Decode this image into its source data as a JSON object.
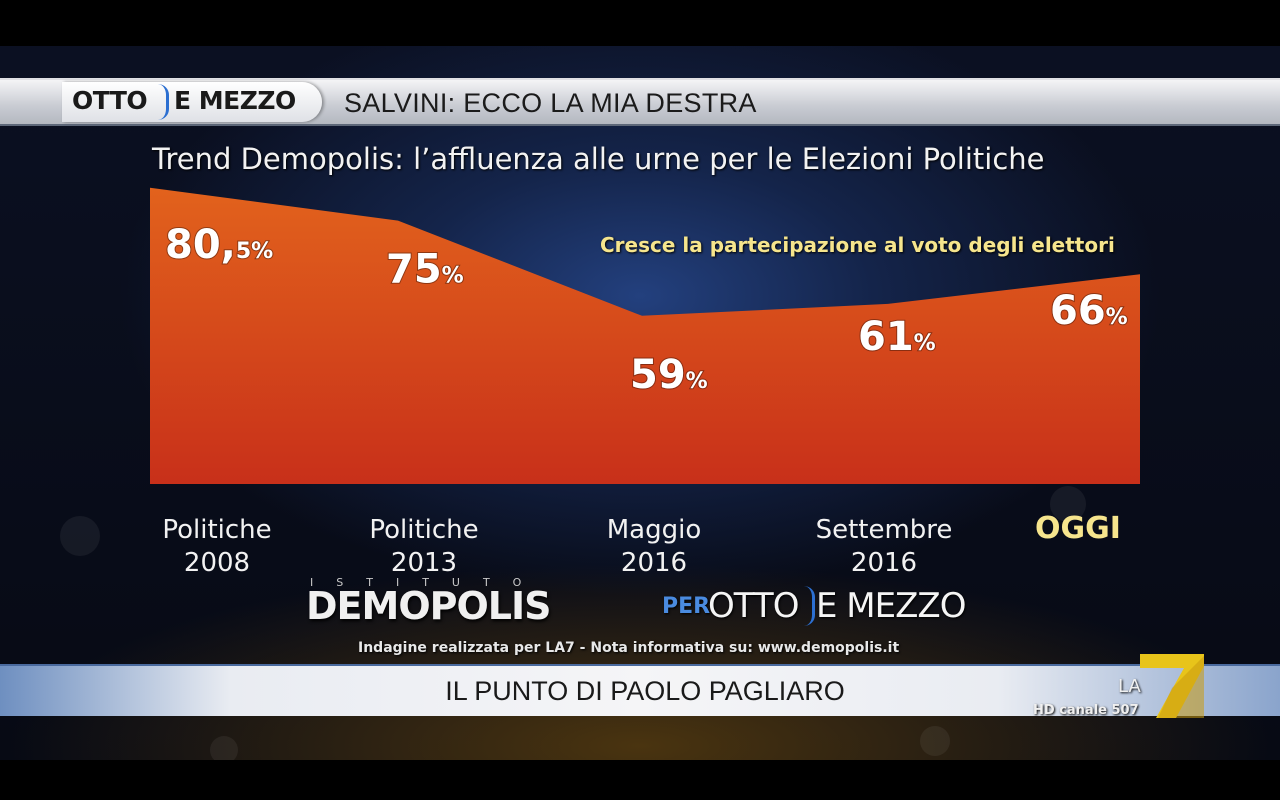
{
  "header": {
    "logo_otto": "OTTO",
    "logo_mezzo": "E MEZZO",
    "headline": "SALVINI: ECCO LA MIA DESTRA"
  },
  "chart_data": {
    "type": "area",
    "title": "Trend Demopolis: l’affluenza alle urne per le Elezioni Politiche",
    "annotation": "Cresce la partecipazione al voto degli elettori",
    "categories": [
      [
        "Politiche",
        "2008"
      ],
      [
        "Politiche",
        "2013"
      ],
      [
        "Maggio",
        "2016"
      ],
      [
        "Settembre",
        "2016"
      ],
      [
        "OGGI"
      ]
    ],
    "values": [
      80.5,
      75,
      59,
      61,
      66
    ],
    "value_labels": [
      {
        "main": "80,",
        "sub": "5%"
      },
      {
        "main": "75",
        "sub": "%"
      },
      {
        "main": "59",
        "sub": "%"
      },
      {
        "main": "61",
        "sub": "%"
      },
      {
        "main": "66",
        "sub": "%"
      }
    ],
    "highlight_category_index": 4,
    "ylim": [
      40,
      85
    ],
    "xlabel": "",
    "ylabel": "",
    "grid": false,
    "colors": {
      "fill_top": "#e2621c",
      "fill_bottom": "#c8301a",
      "highlight": "#f6e58d"
    }
  },
  "branding": {
    "istituto": "ISTITUTO",
    "demopolis": "DEMOPOLIS",
    "per": "PER",
    "otto": "OTTO",
    "mezzo": "E MEZZO",
    "footnote": "Indagine realizzata per LA7 - Nota informativa su: www.demopolis.it"
  },
  "footer": {
    "program": "IL PUNTO DI PAOLO PAGLIARO",
    "channel_logo": "LA",
    "channel_info": "HD canale 507"
  }
}
